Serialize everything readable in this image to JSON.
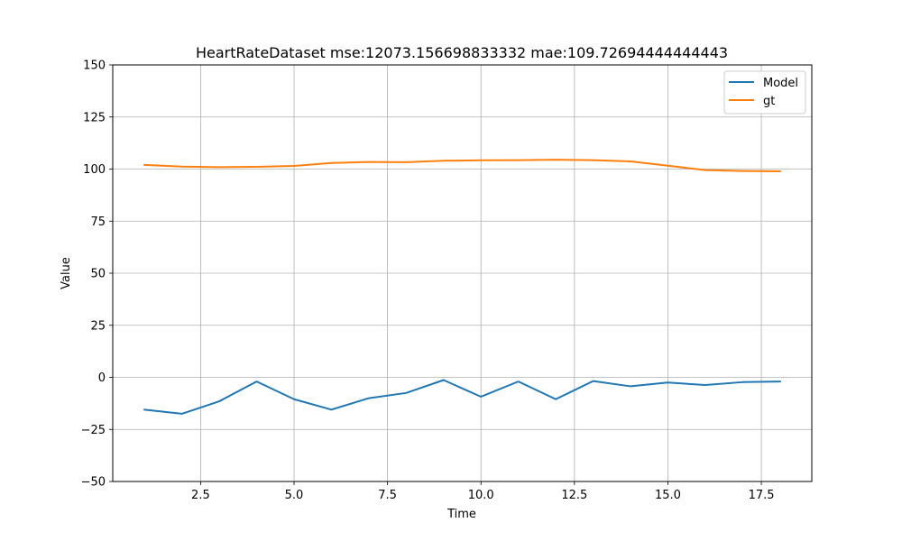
{
  "chart_data": {
    "type": "line",
    "title": "HeartRateDataset mse:12073.156698833332 mae:109.72694444444443",
    "xlabel": "Time",
    "ylabel": "Value",
    "xlim": [
      0.15,
      18.85
    ],
    "ylim": [
      -50,
      150
    ],
    "xticks": [
      2.5,
      5.0,
      7.5,
      10.0,
      12.5,
      15.0,
      17.5
    ],
    "xtick_labels": [
      "2.5",
      "5.0",
      "7.5",
      "10.0",
      "12.5",
      "15.0",
      "17.5"
    ],
    "yticks": [
      -50,
      -25,
      0,
      25,
      50,
      75,
      100,
      125,
      150
    ],
    "ytick_labels": [
      "−50",
      "−25",
      "0",
      "25",
      "50",
      "75",
      "100",
      "125",
      "150"
    ],
    "grid": true,
    "legend_position": "top-right",
    "x": [
      1,
      2,
      3,
      4,
      5,
      6,
      7,
      8,
      9,
      10,
      11,
      12,
      13,
      14,
      15,
      16,
      17,
      18
    ],
    "series": [
      {
        "name": "Model",
        "color": "#1f77b4",
        "values": [
          -15.5,
          -17.5,
          -11.5,
          -2.0,
          -10.5,
          -15.5,
          -10.0,
          -7.5,
          -1.3,
          -9.3,
          -2.0,
          -10.5,
          -1.8,
          -4.3,
          -2.5,
          -3.7,
          -2.3,
          -2.0
        ]
      },
      {
        "name": "gt",
        "color": "#ff7f0e",
        "values": [
          102.0,
          101.2,
          100.9,
          101.1,
          101.5,
          102.9,
          103.4,
          103.3,
          104.0,
          104.2,
          104.3,
          104.5,
          104.3,
          103.7,
          101.6,
          99.5,
          99.1,
          98.9
        ]
      }
    ]
  }
}
